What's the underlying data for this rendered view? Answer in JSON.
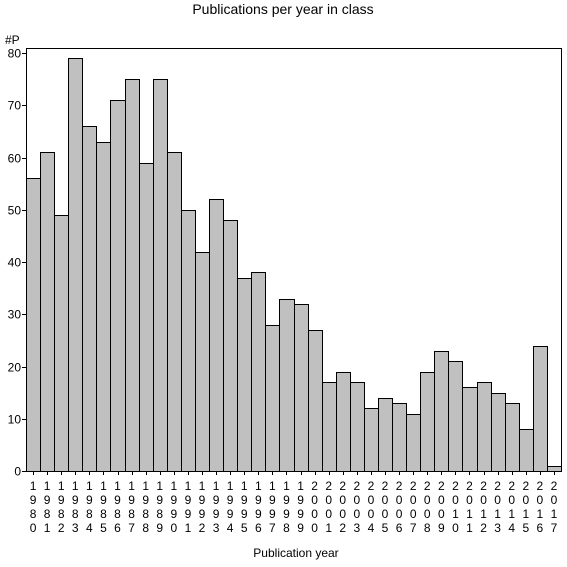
{
  "chart_data": {
    "type": "bar",
    "title": "Publications per year in class",
    "ylabel": "#P",
    "xlabel": "Publication year",
    "ylim": [
      0,
      80
    ],
    "yticks": [
      0,
      10,
      20,
      30,
      40,
      50,
      60,
      70,
      80
    ],
    "grid": false,
    "legend": "none",
    "bar_color": "#c0c0c0",
    "categories": [
      "1980",
      "1981",
      "1982",
      "1983",
      "1984",
      "1985",
      "1986",
      "1987",
      "1988",
      "1989",
      "1990",
      "1991",
      "1992",
      "1993",
      "1994",
      "1995",
      "1996",
      "1997",
      "1998",
      "1999",
      "2000",
      "2001",
      "2002",
      "2003",
      "2004",
      "2005",
      "2006",
      "2007",
      "2008",
      "2009",
      "2010",
      "2011",
      "2012",
      "2013",
      "2014",
      "2015",
      "2016",
      "2017"
    ],
    "values": [
      56,
      61,
      49,
      79,
      66,
      63,
      71,
      75,
      59,
      75,
      61,
      50,
      42,
      52,
      48,
      37,
      38,
      28,
      33,
      32,
      27,
      17,
      19,
      17,
      12,
      14,
      13,
      11,
      19,
      23,
      21,
      16,
      17,
      15,
      13,
      8,
      24,
      1
    ]
  }
}
